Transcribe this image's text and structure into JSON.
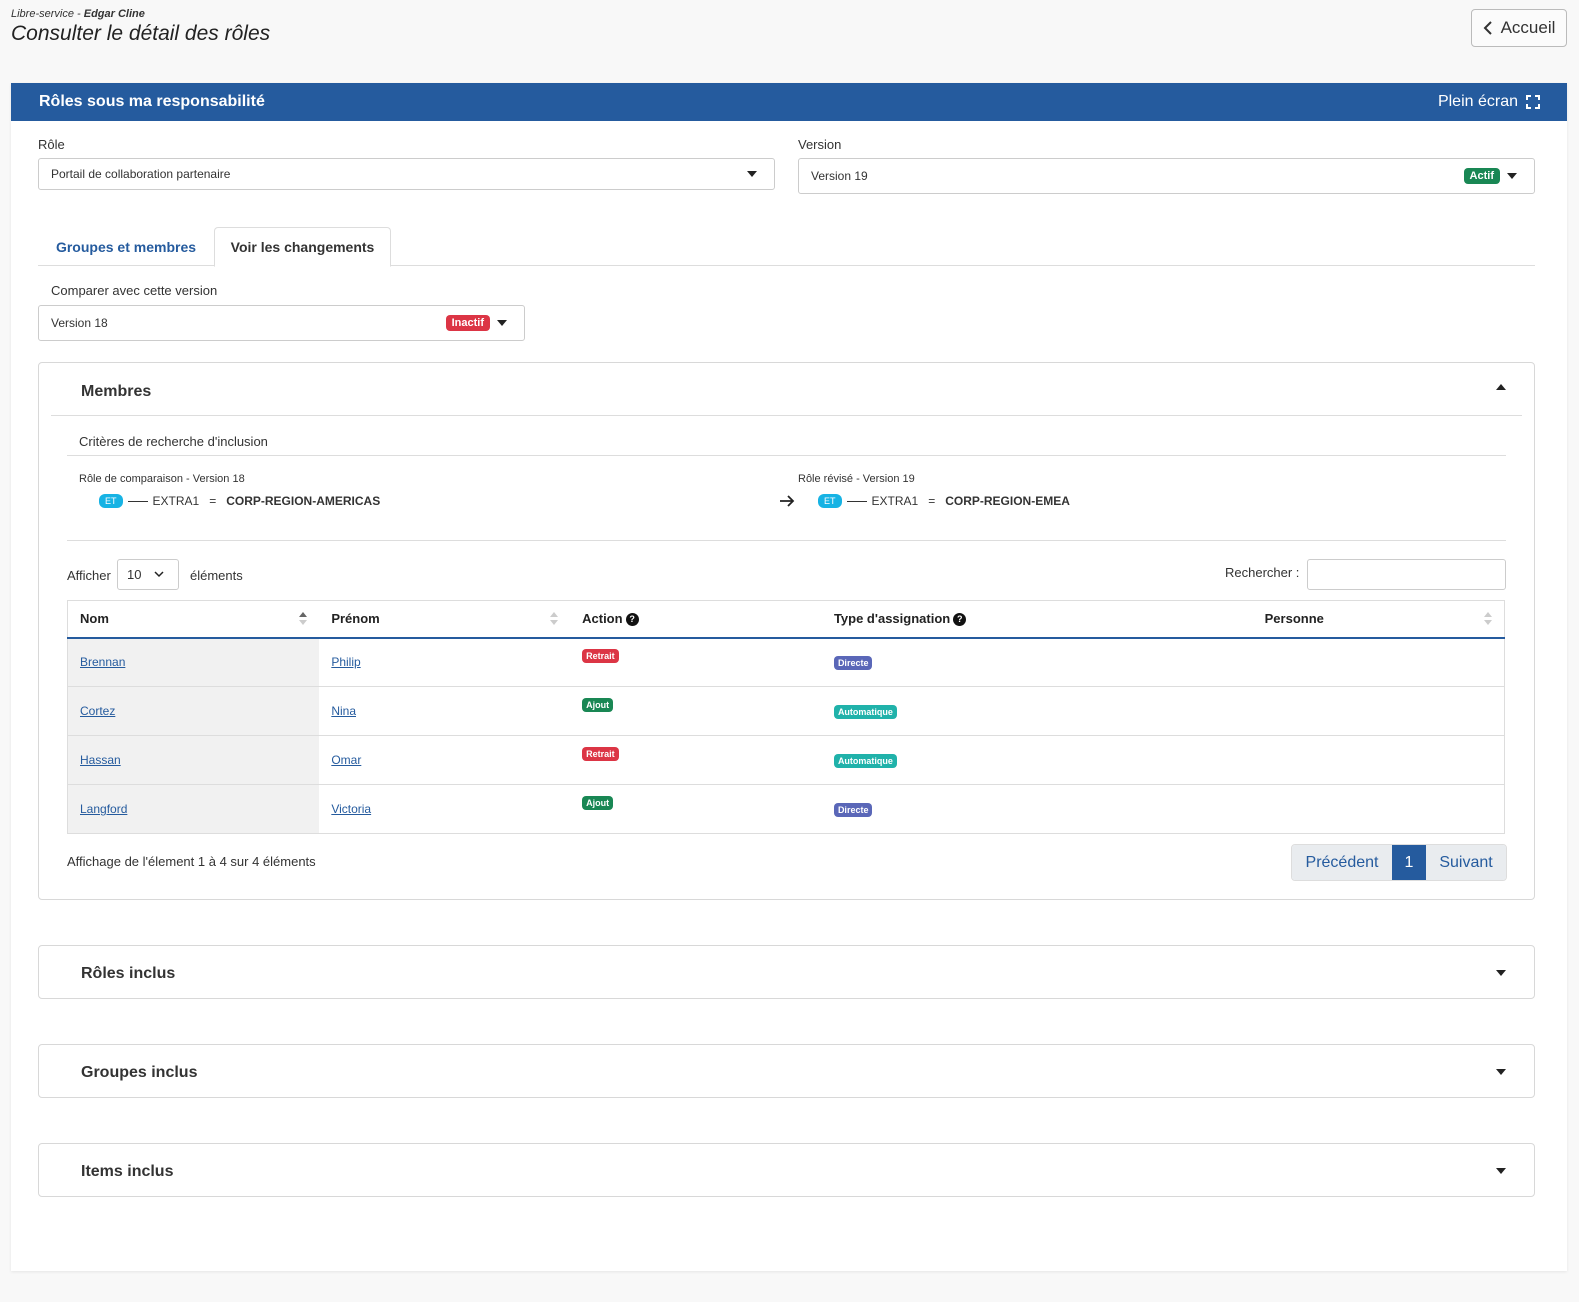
{
  "header": {
    "crumb_prefix": "Libre-service - ",
    "crumb_user": "Edgar Cline",
    "title": "Consulter le détail des rôles",
    "home_label": "Accueil"
  },
  "card": {
    "title": "Rôles sous ma responsabilité",
    "fullscreen_label": "Plein écran"
  },
  "role": {
    "label": "Rôle",
    "value": "Portail de collaboration partenaire"
  },
  "version": {
    "label": "Version",
    "value": "Version 19",
    "badge": "Actif"
  },
  "tabs": [
    {
      "label": "Groupes et membres"
    },
    {
      "label": "Voir les changements"
    }
  ],
  "compare": {
    "label": "Comparer avec cette version",
    "value": "Version 18",
    "badge": "Inactif"
  },
  "members": {
    "title": "Membres",
    "criteria_title": "Critères de recherche d'inclusion",
    "left": {
      "label": "Rôle de comparaison - Version 18",
      "op": "ET",
      "attr": "EXTRA1",
      "eq": "=",
      "value": "CORP-REGION-AMERICAS"
    },
    "right": {
      "label": "Rôle révisé - Version 19",
      "op": "ET",
      "attr": "EXTRA1",
      "eq": "=",
      "value": "CORP-REGION-EMEA"
    },
    "show_label": "Afficher",
    "page_size": "10",
    "elements_label": "éléments",
    "search_label": "Rechercher :",
    "columns": [
      "Nom",
      "Prénom",
      "Action",
      "Type d'assignation",
      "Personne"
    ],
    "rows": [
      {
        "nom": "Brennan",
        "prenom": "Philip",
        "action": "Retrait",
        "type": "Directe"
      },
      {
        "nom": "Cortez",
        "prenom": "Nina",
        "action": "Ajout",
        "type": "Automatique"
      },
      {
        "nom": "Hassan",
        "prenom": "Omar",
        "action": "Retrait",
        "type": "Automatique"
      },
      {
        "nom": "Langford",
        "prenom": "Victoria",
        "action": "Ajout",
        "type": "Directe"
      }
    ],
    "info": "Affichage de l'élement 1 à 4 sur 4 éléments",
    "pager": {
      "prev": "Précédent",
      "current": "1",
      "next": "Suivant"
    }
  },
  "sections": [
    {
      "title": "Rôles inclus"
    },
    {
      "title": "Groupes inclus"
    },
    {
      "title": "Items inclus"
    }
  ],
  "colors": {
    "primary": "#255b9e",
    "active": "#198754",
    "inactive": "#dc3545",
    "directe": "#5a67b8",
    "automatique": "#20b2aa",
    "et_badge": "#17b3e4"
  }
}
